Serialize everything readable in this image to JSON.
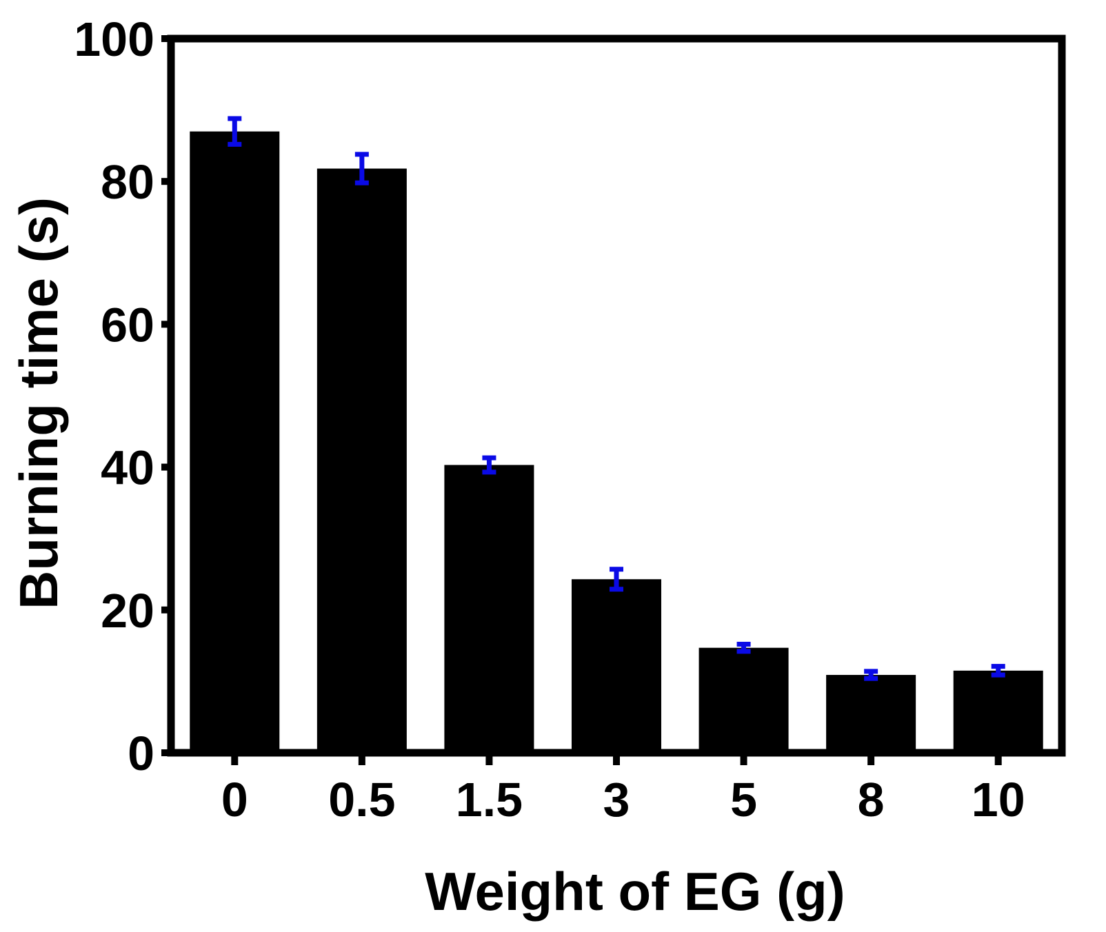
{
  "chart_data": {
    "type": "bar",
    "title": "",
    "xlabel": "Weight of EG (g)",
    "ylabel": "Burning time (s)",
    "categories": [
      "0",
      "0.5",
      "1.5",
      "3",
      "5",
      "8",
      "10"
    ],
    "values": [
      87,
      81.8,
      40.3,
      24.3,
      14.7,
      10.9,
      11.5
    ],
    "errors": [
      1.8,
      2.0,
      1.0,
      1.4,
      0.5,
      0.5,
      0.6
    ],
    "ylim": [
      0,
      100
    ],
    "yticks": [
      "0",
      "20",
      "40",
      "60",
      "80",
      "100"
    ],
    "grid": false,
    "legend": "none",
    "colors": {
      "bar": "#000000",
      "error_bar": "#0a0ae6",
      "axis": "#000000"
    }
  }
}
